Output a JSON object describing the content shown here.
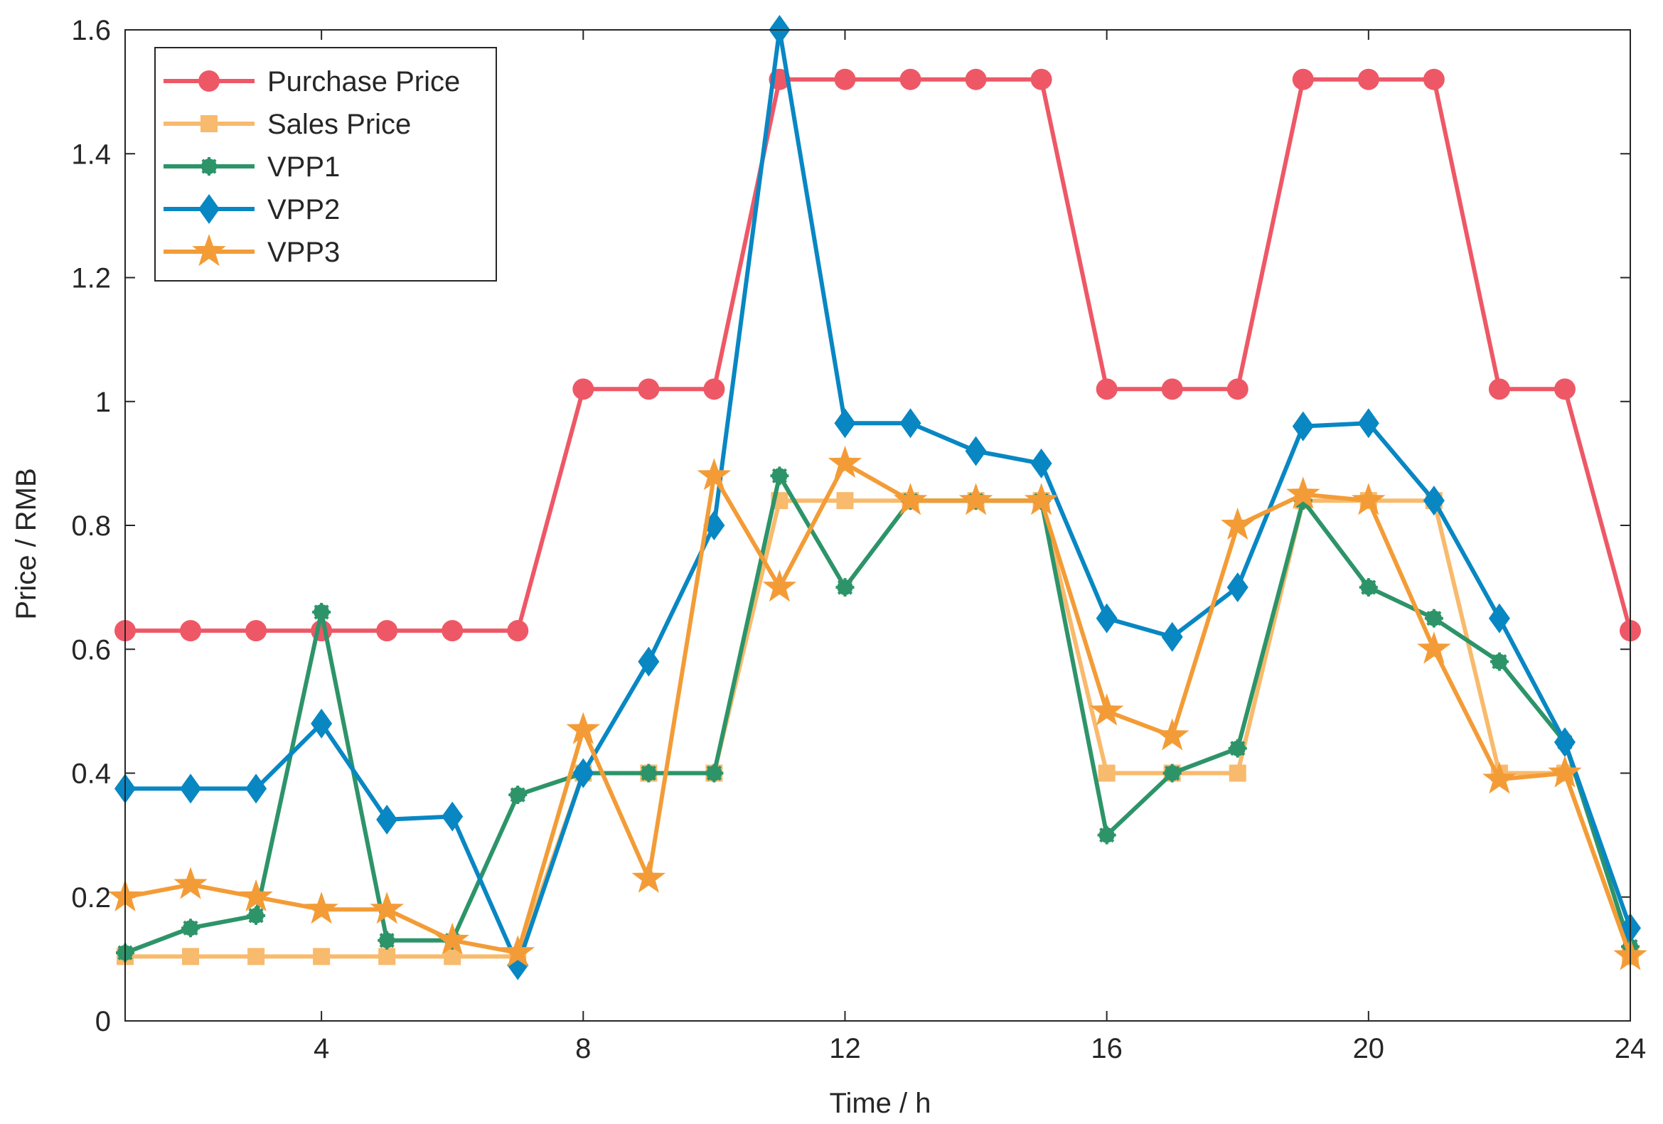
{
  "chart_data": {
    "type": "line",
    "title": "",
    "xlabel": "Time / h",
    "ylabel": "Price / RMB",
    "xlim": [
      1,
      24
    ],
    "ylim": [
      0,
      1.6
    ],
    "x_ticks": [
      4,
      8,
      12,
      16,
      20,
      24
    ],
    "y_ticks": [
      0,
      0.2,
      0.4,
      0.6,
      0.8,
      1,
      1.2,
      1.4,
      1.6
    ],
    "y_tick_labels": [
      "0",
      "0.2",
      "0.4",
      "0.6",
      "0.8",
      "1",
      "1.2",
      "1.4",
      "1.6"
    ],
    "legend_position": "top-left",
    "x": [
      1,
      2,
      3,
      4,
      5,
      6,
      7,
      8,
      9,
      10,
      11,
      12,
      13,
      14,
      15,
      16,
      17,
      18,
      19,
      20,
      21,
      22,
      23,
      24
    ],
    "series": [
      {
        "name": "Purchase Price",
        "color": "#EE5866",
        "marker": "circle",
        "values": [
          0.63,
          0.63,
          0.63,
          0.63,
          0.63,
          0.63,
          0.63,
          1.02,
          1.02,
          1.02,
          1.52,
          1.52,
          1.52,
          1.52,
          1.52,
          1.02,
          1.02,
          1.02,
          1.52,
          1.52,
          1.52,
          1.02,
          1.02,
          0.63
        ]
      },
      {
        "name": "Sales Price",
        "color": "#F8BA6C",
        "marker": "square",
        "values": [
          0.104,
          0.104,
          0.104,
          0.104,
          0.104,
          0.104,
          0.104,
          0.4,
          0.4,
          0.4,
          0.84,
          0.84,
          0.84,
          0.84,
          0.84,
          0.4,
          0.4,
          0.4,
          0.84,
          0.84,
          0.84,
          0.4,
          0.4,
          0.104
        ]
      },
      {
        "name": "VPP1",
        "color": "#2D9469",
        "marker": "asterisk",
        "values": [
          0.11,
          0.15,
          0.17,
          0.66,
          0.13,
          0.13,
          0.365,
          0.4,
          0.4,
          0.4,
          0.88,
          0.7,
          0.84,
          0.84,
          0.84,
          0.3,
          0.4,
          0.44,
          0.84,
          0.7,
          0.65,
          0.58,
          0.45,
          0.12
        ]
      },
      {
        "name": "VPP2",
        "color": "#0887C3",
        "marker": "diamond",
        "values": [
          0.375,
          0.375,
          0.375,
          0.48,
          0.325,
          0.33,
          0.09,
          0.4,
          0.58,
          0.8,
          1.6,
          0.965,
          0.965,
          0.92,
          0.9,
          0.65,
          0.62,
          0.7,
          0.96,
          0.965,
          0.84,
          0.65,
          0.45,
          0.15
        ]
      },
      {
        "name": "VPP3",
        "color": "#F39C37",
        "marker": "star",
        "values": [
          0.2,
          0.22,
          0.2,
          0.18,
          0.18,
          0.13,
          0.11,
          0.47,
          0.23,
          0.88,
          0.7,
          0.9,
          0.84,
          0.84,
          0.84,
          0.5,
          0.46,
          0.8,
          0.85,
          0.84,
          0.6,
          0.39,
          0.4,
          0.105
        ]
      }
    ]
  }
}
